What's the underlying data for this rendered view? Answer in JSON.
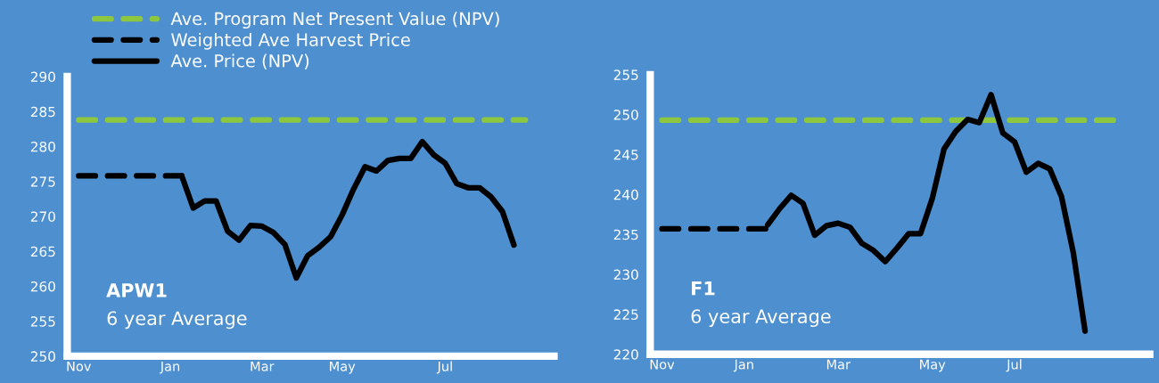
{
  "chart_data": [
    {
      "type": "line",
      "legend": "top left",
      "annotations": [
        "APW1",
        "6 year Average"
      ],
      "categories": [
        "Nov",
        null,
        null,
        null,
        null,
        null,
        null,
        null,
        "Jan",
        null,
        null,
        null,
        null,
        null,
        null,
        null,
        "Mar",
        null,
        null,
        null,
        null,
        null,
        null,
        "May",
        null,
        null,
        null,
        null,
        null,
        null,
        null,
        null,
        "Jul",
        null,
        null,
        null,
        null,
        null,
        null,
        null
      ],
      "ylim": [
        250,
        290
      ],
      "grid": false,
      "yticks": [
        250,
        255,
        260,
        265,
        270,
        275,
        280,
        285,
        290
      ],
      "series": [
        {
          "name": "Ave. Program Net Present Value (NPV)",
          "color": "#8dc63f",
          "line_style": "dashed",
          "values": [
            283.8,
            283.8,
            283.8,
            283.8,
            283.8,
            283.8,
            283.8,
            283.8,
            283.8,
            283.8,
            283.8,
            283.8,
            283.8,
            283.8,
            283.8,
            283.8,
            283.8,
            283.8,
            283.8,
            283.8,
            283.8,
            283.8,
            283.8,
            283.8,
            283.8,
            283.8,
            283.8,
            283.8,
            283.8,
            283.8,
            283.8,
            283.8,
            283.8,
            283.8,
            283.8,
            283.8,
            283.8,
            283.8,
            283.8,
            283.8
          ]
        },
        {
          "name": "Weighted Ave Harvest Price",
          "color": "#000000",
          "line_style": "dashed",
          "values": [
            275.8,
            275.8,
            275.8,
            275.8,
            275.8,
            275.8,
            275.8,
            275.8,
            275.8,
            275.8,
            null,
            null,
            null,
            null,
            null,
            null,
            null,
            null,
            null,
            null,
            null,
            null,
            null,
            null,
            null,
            null,
            null,
            null,
            null,
            null,
            null,
            null,
            null,
            null,
            null,
            null,
            null,
            null,
            null,
            null
          ]
        },
        {
          "name": "Ave. Price (NPV)",
          "color": "#000000",
          "line_style": "solid",
          "values": [
            null,
            null,
            null,
            null,
            null,
            null,
            null,
            null,
            null,
            275.8,
            271.2,
            272.2,
            272.2,
            267.9,
            266.6,
            268.7,
            268.6,
            267.7,
            266.0,
            261.2,
            264.4,
            265.6,
            267.1,
            270.2,
            273.9,
            277.1,
            276.5,
            278.0,
            278.3,
            278.3,
            280.7,
            278.8,
            277.6,
            274.7,
            274.1,
            274.1,
            272.8,
            270.7,
            265.9,
            null
          ]
        }
      ]
    },
    {
      "type": "line",
      "annotations": [
        "F1",
        "6 year Average"
      ],
      "categories": [
        "Nov",
        null,
        null,
        null,
        null,
        null,
        null,
        "Jan",
        null,
        null,
        null,
        null,
        null,
        null,
        null,
        "Mar",
        null,
        null,
        null,
        null,
        null,
        null,
        null,
        "May",
        null,
        null,
        null,
        null,
        null,
        null,
        "Jul",
        null,
        null,
        null,
        null,
        null,
        null,
        null,
        null,
        null
      ],
      "ylim": [
        220,
        255
      ],
      "grid": false,
      "yticks": [
        220,
        225,
        230,
        235,
        240,
        245,
        250,
        255
      ],
      "series": [
        {
          "color": "#8dc63f",
          "line_style": "dashed",
          "values": [
            249.3,
            249.3,
            249.3,
            249.3,
            249.3,
            249.3,
            249.3,
            249.3,
            249.3,
            249.3,
            249.3,
            249.3,
            249.3,
            249.3,
            249.3,
            249.3,
            249.3,
            249.3,
            249.3,
            249.3,
            249.3,
            249.3,
            249.3,
            249.3,
            249.3,
            249.3,
            249.3,
            249.3,
            249.3,
            249.3,
            249.3,
            249.3,
            249.3,
            249.3,
            249.3,
            249.3,
            249.3,
            249.3,
            249.3,
            249.3
          ]
        },
        {
          "color": "#000000",
          "line_style": "dashed",
          "values": [
            235.7,
            235.7,
            235.7,
            235.7,
            235.7,
            235.7,
            235.7,
            235.7,
            235.7,
            235.7,
            null,
            null,
            null,
            null,
            null,
            null,
            null,
            null,
            null,
            null,
            null,
            null,
            null,
            null,
            null,
            null,
            null,
            null,
            null,
            null,
            null,
            null,
            null,
            null,
            null,
            null,
            null,
            null,
            null,
            null
          ]
        },
        {
          "color": "#000000",
          "line_style": "solid",
          "values": [
            null,
            null,
            null,
            null,
            null,
            null,
            null,
            null,
            null,
            236.2,
            238.2,
            239.9,
            238.9,
            234.9,
            236.1,
            236.4,
            235.9,
            233.9,
            233.0,
            231.6,
            233.3,
            235.1,
            235.1,
            239.5,
            245.7,
            247.9,
            249.4,
            249.0,
            252.5,
            247.7,
            246.6,
            242.8,
            243.9,
            243.2,
            239.7,
            232.7,
            222.9,
            null,
            null,
            null
          ]
        }
      ]
    }
  ]
}
